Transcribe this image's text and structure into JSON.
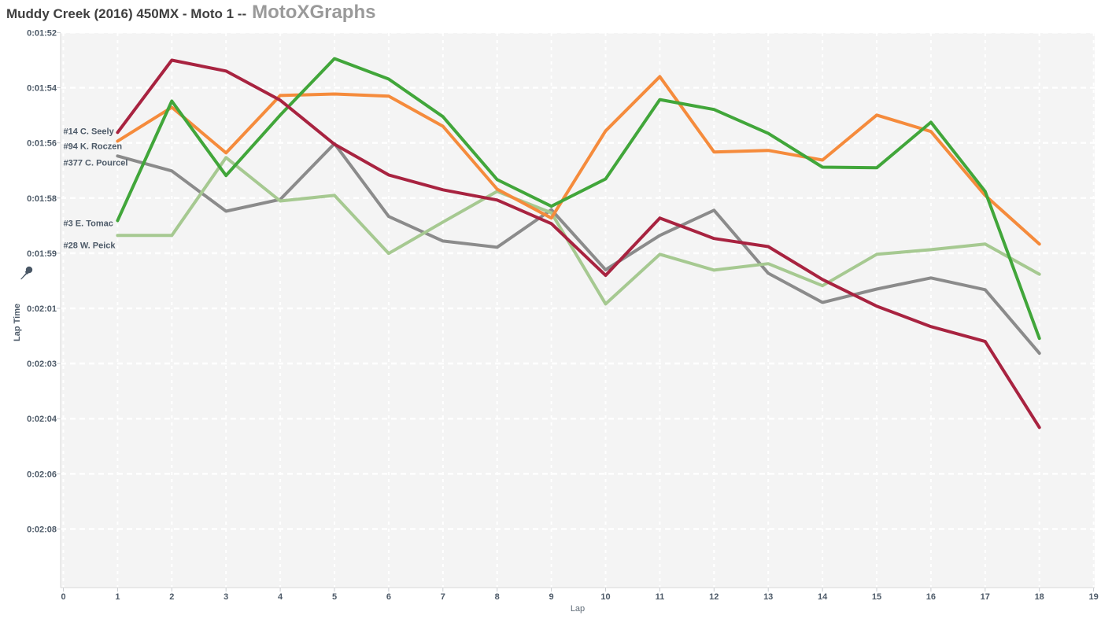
{
  "title": {
    "race": "Muddy Creek (2016) 450MX - Moto 1 --",
    "brand": "MotoXGraphs"
  },
  "chart_data": {
    "type": "line",
    "title": "Muddy Creek (2016) 450MX - Moto 1 -- MotoXGraphs",
    "xlabel": "Lap",
    "ylabel": "Lap Time",
    "x_tick_labels": [
      "0",
      "1",
      "2",
      "3",
      "4",
      "5",
      "6",
      "7",
      "8",
      "9",
      "10",
      "11",
      "12",
      "13",
      "14",
      "15",
      "16",
      "17",
      "18",
      "19"
    ],
    "y_tick_labels": [
      "0:01:52",
      "0:01:54",
      "0:01:56",
      "0:01:58",
      "0:01:59",
      "0:02:01",
      "0:02:03",
      "0:02:04",
      "0:02:06",
      "0:02:08"
    ],
    "y_axis": {
      "unit": "seconds",
      "top_value": 112,
      "bottom_value": 128,
      "direction": "faster-at-top"
    },
    "x_range": [
      0,
      19
    ],
    "grid": "white dashed gridlines on light gray plot background",
    "legend_position": "labels inline at start of each line",
    "laps": [
      1,
      2,
      3,
      4,
      5,
      6,
      7,
      8,
      9,
      10,
      11,
      12,
      13,
      14,
      15,
      16,
      17,
      18
    ],
    "series": [
      {
        "name": "#14 C. Seely",
        "color": "#a82340",
        "seconds": [
          115.22,
          112.89,
          113.24,
          114.18,
          115.6,
          116.59,
          117.07,
          117.4,
          118.16,
          119.83,
          117.98,
          118.64,
          118.9,
          119.96,
          120.82,
          121.48,
          121.96,
          124.73
        ]
      },
      {
        "name": "#94 K. Roczen",
        "color": "#f58b3c",
        "seconds": [
          115.5,
          114.41,
          115.88,
          114.03,
          113.98,
          114.05,
          115.02,
          117.05,
          117.98,
          115.17,
          113.42,
          115.85,
          115.8,
          116.11,
          114.66,
          115.19,
          117.25,
          118.82
        ]
      },
      {
        "name": "#377 C. Pourcel",
        "color": "#8b8b8b",
        "seconds": [
          115.98,
          116.46,
          117.76,
          117.38,
          115.58,
          117.93,
          118.72,
          118.92,
          117.71,
          119.65,
          118.54,
          117.73,
          119.76,
          120.7,
          120.27,
          119.91,
          120.29,
          122.34
        ]
      },
      {
        "name": "#3 E. Tomac",
        "color": "#41a63a",
        "seconds": [
          118.06,
          114.21,
          116.61,
          114.66,
          112.84,
          113.5,
          114.71,
          116.74,
          117.6,
          116.72,
          114.16,
          114.48,
          115.25,
          116.34,
          116.36,
          114.89,
          117.12,
          121.86
        ]
      },
      {
        "name": "#28 W. Peick",
        "color": "#a6c991",
        "seconds": [
          118.54,
          118.54,
          116.03,
          117.43,
          117.25,
          119.12,
          118.11,
          117.12,
          117.81,
          120.75,
          119.15,
          119.66,
          119.45,
          120.16,
          119.15,
          119.0,
          118.82,
          119.79
        ]
      }
    ],
    "colors": {
      "plot_background": "#f4f4f4",
      "gridline": "#ffffff",
      "axis_line": "#d9d9d9",
      "tick_mark": "#c9ccd0",
      "tick_text": "#4d5a68",
      "series_label_text": "#4d5a68"
    }
  }
}
